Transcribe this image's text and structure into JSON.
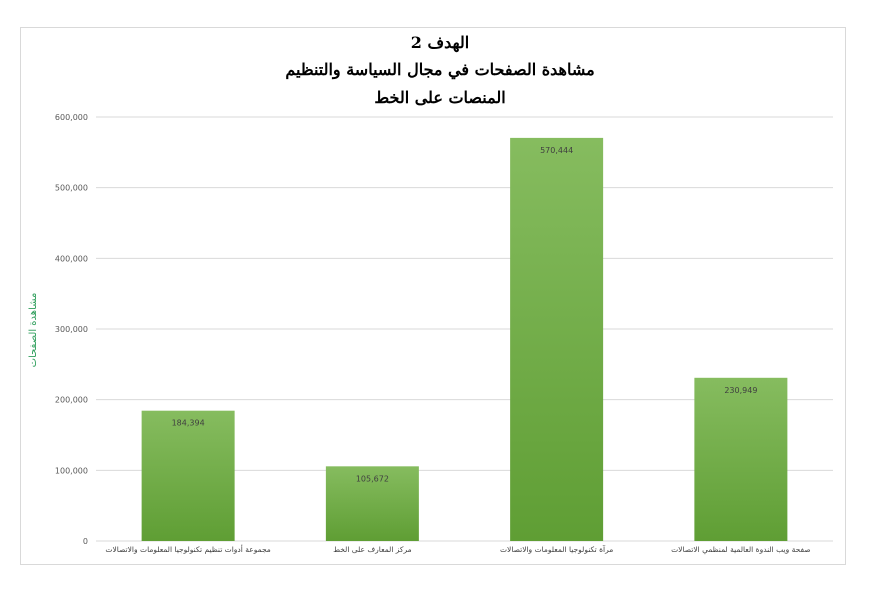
{
  "chart_data": {
    "type": "bar",
    "title_lines": [
      "الهدف 2",
      "مشاهدة الصفحات في مجال السياسة والتنظيم",
      "المنصات على الخط"
    ],
    "ylabel": "مشاهدة الصفحات",
    "xlabel": "",
    "categories": [
      "مجموعة أدوات تنظيم تكنولوجيا المعلومات والاتصالات",
      "مركز المعارف على الخط",
      "مرآة تكنولوجيا المعلومات والاتصالات",
      "صفحة ويب الندوة العالمية لمنظمي الاتصالات"
    ],
    "values": [
      184394,
      105672,
      570444,
      230949
    ],
    "value_labels": [
      "184,394",
      "105,672",
      "570,444",
      "230,949"
    ],
    "ylim": [
      0,
      600000
    ],
    "yticks": [
      0,
      100000,
      200000,
      300000,
      400000,
      500000,
      600000
    ],
    "ytick_labels": [
      "0",
      "100,000",
      "200,000",
      "300,000",
      "400,000",
      "500,000",
      "600,000"
    ],
    "grid": true,
    "legend": "none",
    "bar_color_top": "#86bc5f",
    "bar_color_bottom": "#5f9e34",
    "ylabel_color": "#2e9e5b"
  }
}
